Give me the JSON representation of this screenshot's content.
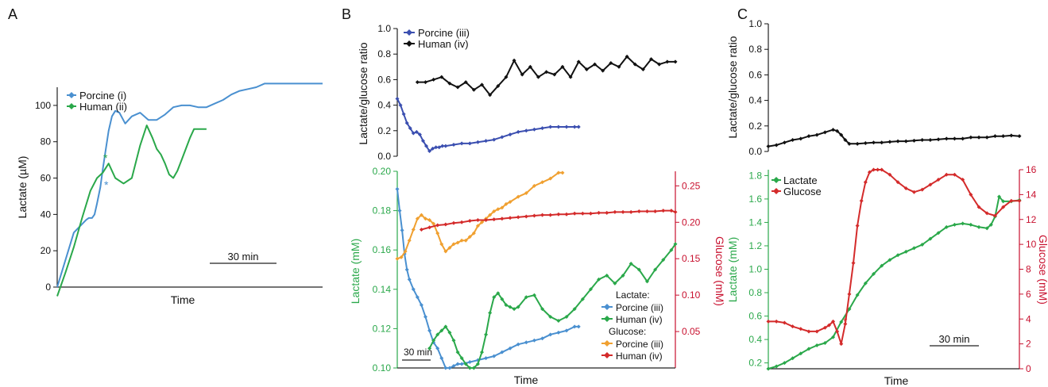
{
  "panels": [
    {
      "id": "A",
      "letter": "A"
    },
    {
      "id": "B",
      "letter": "B"
    },
    {
      "id": "C",
      "letter": "C"
    }
  ],
  "colors": {
    "porcine_lactate": "#4a90d0",
    "human_lactate": "#2aa84a",
    "porcine_ratio": "#3b4fb0",
    "human_ratio": "#111111",
    "porcine_glucose": "#f0a030",
    "human_glucose": "#d42b2b",
    "glucose_axis": "#c8102e",
    "lactate_axis": "#2aa84a"
  },
  "chart_data": [
    {
      "panel": "A",
      "type": "line",
      "xlabel": "Time",
      "ylabel": "Lactate (µM)",
      "ylim": [
        0,
        110
      ],
      "yticks": [
        "0",
        "20",
        "40",
        "60",
        "80",
        "100"
      ],
      "scalebar": "30 min",
      "legend": [
        "Porcine (i)",
        "Human (ii)"
      ],
      "series": [
        {
          "name": "Porcine (i)",
          "color": "#4a90d0",
          "x": [
            0,
            20,
            35,
            38,
            42,
            45,
            48,
            52,
            55,
            58,
            62,
            66,
            70,
            75,
            82,
            90,
            100,
            110,
            120,
            130,
            140,
            150,
            160,
            170,
            180,
            190,
            200,
            210,
            220,
            230,
            240,
            250,
            260,
            270,
            280,
            290,
            300,
            310,
            320
          ],
          "y": [
            0,
            30,
            37,
            38,
            38,
            40,
            46,
            55,
            65,
            74,
            86,
            94,
            97,
            96,
            90,
            94,
            96,
            92,
            92,
            95,
            99,
            100,
            100,
            99,
            99,
            101,
            103,
            106,
            108,
            109,
            110,
            112,
            112,
            112,
            112,
            112,
            112,
            112,
            112
          ]
        },
        {
          "name": "Human (ii)",
          "color": "#2aa84a",
          "x": [
            0,
            10,
            20,
            30,
            40,
            48,
            55,
            62,
            70,
            80,
            90,
            100,
            108,
            115,
            120,
            125,
            130,
            135,
            140,
            145,
            150,
            155,
            160,
            165,
            170,
            175,
            180
          ],
          "y": [
            -5,
            8,
            22,
            38,
            53,
            60,
            63,
            68,
            60,
            57,
            60,
            78,
            89,
            82,
            76,
            73,
            68,
            62,
            60,
            64,
            70,
            76,
            82,
            87,
            87,
            87,
            87
          ]
        }
      ]
    },
    {
      "panel": "B-top",
      "type": "line",
      "ylabel": "Lactate/glucose ratio",
      "ylim": [
        0,
        1.0
      ],
      "yticks": [
        "0.0",
        "0.2",
        "0.4",
        "0.6",
        "0.8",
        "1.0"
      ],
      "legend": [
        "Porcine (iii)",
        "Human (iv)"
      ],
      "series": [
        {
          "name": "Porcine (iii)",
          "color": "#3b4fb0",
          "x": [
            0,
            4,
            8,
            12,
            16,
            20,
            24,
            28,
            32,
            36,
            40,
            44,
            48,
            52,
            56,
            60,
            70,
            80,
            90,
            100,
            110,
            120,
            130,
            140,
            150,
            160,
            170,
            180,
            190,
            200,
            210,
            220,
            225
          ],
          "y": [
            0.45,
            0.4,
            0.33,
            0.26,
            0.22,
            0.18,
            0.19,
            0.17,
            0.12,
            0.08,
            0.04,
            0.06,
            0.07,
            0.07,
            0.08,
            0.08,
            0.09,
            0.1,
            0.1,
            0.11,
            0.12,
            0.13,
            0.15,
            0.17,
            0.19,
            0.2,
            0.21,
            0.22,
            0.23,
            0.23,
            0.23,
            0.23,
            0.23
          ]
        },
        {
          "name": "Human (iv)",
          "color": "#111111",
          "x": [
            25,
            35,
            45,
            55,
            65,
            75,
            85,
            95,
            105,
            115,
            125,
            135,
            145,
            155,
            165,
            175,
            185,
            195,
            205,
            215,
            225,
            235,
            245,
            255,
            265,
            275,
            285,
            295,
            305,
            315,
            325,
            335,
            345
          ],
          "y": [
            0.58,
            0.58,
            0.6,
            0.62,
            0.57,
            0.54,
            0.58,
            0.52,
            0.56,
            0.48,
            0.55,
            0.62,
            0.75,
            0.64,
            0.7,
            0.62,
            0.66,
            0.64,
            0.7,
            0.62,
            0.74,
            0.68,
            0.72,
            0.67,
            0.73,
            0.7,
            0.78,
            0.72,
            0.68,
            0.76,
            0.72,
            0.74,
            0.74
          ]
        }
      ]
    },
    {
      "panel": "B-bottom",
      "type": "line",
      "xlabel": "Time",
      "ylabel_left": "Lactate (mM)",
      "ylabel_right": "Glucose (mM)",
      "ylim_left": [
        0.1,
        0.2
      ],
      "ylim_right": [
        0,
        0.27
      ],
      "yticks_left": [
        "0.10",
        "0.12",
        "0.14",
        "0.16",
        "0.18",
        "0.20"
      ],
      "yticks_right": [
        "0.05",
        "0.10",
        "0.15",
        "0.20",
        "0.25"
      ],
      "scalebar": "30 min",
      "legend_groups": [
        {
          "title": "Lactate:",
          "items": [
            "Porcine (iii)",
            "Human (iv)"
          ]
        },
        {
          "title": "Glucose:",
          "items": [
            "Porcine (iii)",
            "Human (iv)"
          ]
        }
      ],
      "series": [
        {
          "name": "Porcine (iii)",
          "group": "Lactate:",
          "axis": "left",
          "color": "#4a90d0",
          "x": [
            0,
            3,
            6,
            9,
            12,
            15,
            20,
            25,
            30,
            35,
            40,
            45,
            50,
            55,
            60,
            65,
            70,
            75,
            80,
            90,
            100,
            110,
            120,
            130,
            140,
            150,
            160,
            170,
            180,
            190,
            200,
            210,
            220,
            225
          ],
          "y": [
            0.191,
            0.18,
            0.17,
            0.158,
            0.15,
            0.145,
            0.14,
            0.136,
            0.132,
            0.126,
            0.119,
            0.113,
            0.11,
            0.105,
            0.1,
            0.1,
            0.101,
            0.102,
            0.102,
            0.103,
            0.104,
            0.105,
            0.106,
            0.108,
            0.11,
            0.112,
            0.113,
            0.114,
            0.115,
            0.117,
            0.118,
            0.119,
            0.121,
            0.121
          ]
        },
        {
          "name": "Human (iv)",
          "group": "Lactate:",
          "axis": "left",
          "color": "#2aa84a",
          "x": [
            40,
            45,
            50,
            55,
            60,
            65,
            70,
            75,
            80,
            85,
            90,
            95,
            100,
            105,
            110,
            115,
            120,
            125,
            130,
            135,
            140,
            145,
            150,
            160,
            170,
            180,
            190,
            200,
            210,
            220,
            230,
            240,
            250,
            260,
            270,
            280,
            290,
            300,
            310,
            320,
            330,
            340,
            345
          ],
          "y": [
            0.11,
            0.114,
            0.117,
            0.119,
            0.121,
            0.118,
            0.114,
            0.108,
            0.105,
            0.102,
            0.1,
            0.1,
            0.102,
            0.108,
            0.117,
            0.128,
            0.136,
            0.138,
            0.135,
            0.132,
            0.131,
            0.13,
            0.131,
            0.136,
            0.137,
            0.13,
            0.126,
            0.124,
            0.126,
            0.13,
            0.135,
            0.14,
            0.145,
            0.147,
            0.143,
            0.147,
            0.153,
            0.15,
            0.144,
            0.15,
            0.155,
            0.16,
            0.163
          ]
        },
        {
          "name": "Porcine (iii)",
          "group": "Glucose:",
          "axis": "right",
          "color": "#f0a030",
          "x": [
            0,
            5,
            10,
            15,
            20,
            25,
            30,
            35,
            40,
            45,
            50,
            55,
            60,
            65,
            70,
            75,
            80,
            85,
            90,
            95,
            100,
            105,
            110,
            115,
            120,
            125,
            130,
            135,
            140,
            150,
            160,
            170,
            180,
            190,
            200,
            205
          ],
          "y": [
            0.15,
            0.152,
            0.16,
            0.175,
            0.19,
            0.205,
            0.21,
            0.205,
            0.203,
            0.198,
            0.185,
            0.17,
            0.16,
            0.165,
            0.17,
            0.172,
            0.175,
            0.175,
            0.18,
            0.185,
            0.195,
            0.2,
            0.205,
            0.21,
            0.215,
            0.218,
            0.22,
            0.225,
            0.228,
            0.235,
            0.24,
            0.25,
            0.255,
            0.26,
            0.268,
            0.268
          ]
        },
        {
          "name": "Human (iv)",
          "group": "Glucose:",
          "axis": "right",
          "color": "#d42b2b",
          "x": [
            30,
            40,
            50,
            60,
            70,
            80,
            90,
            100,
            110,
            120,
            130,
            140,
            150,
            160,
            170,
            180,
            190,
            200,
            210,
            220,
            230,
            240,
            250,
            260,
            270,
            280,
            290,
            300,
            310,
            320,
            330,
            340,
            345
          ],
          "y": [
            0.19,
            0.193,
            0.196,
            0.197,
            0.199,
            0.2,
            0.202,
            0.203,
            0.203,
            0.204,
            0.205,
            0.206,
            0.207,
            0.208,
            0.209,
            0.21,
            0.21,
            0.211,
            0.211,
            0.212,
            0.212,
            0.212,
            0.213,
            0.213,
            0.214,
            0.214,
            0.214,
            0.215,
            0.215,
            0.215,
            0.216,
            0.216,
            0.214
          ]
        }
      ]
    },
    {
      "panel": "C-top",
      "type": "line",
      "ylabel": "Lactate/glucose ratio",
      "ylim": [
        0,
        1.0
      ],
      "yticks": [
        "0.0",
        "0.2",
        "0.4",
        "0.6",
        "0.8",
        "1.0"
      ],
      "series": [
        {
          "color": "#111111",
          "x": [
            0,
            10,
            20,
            30,
            40,
            50,
            60,
            70,
            80,
            85,
            90,
            95,
            100,
            110,
            120,
            130,
            140,
            150,
            160,
            170,
            180,
            190,
            200,
            210,
            220,
            230,
            240,
            250,
            260,
            270,
            280,
            290,
            300,
            310
          ],
          "y": [
            0.04,
            0.05,
            0.07,
            0.09,
            0.1,
            0.12,
            0.13,
            0.15,
            0.17,
            0.16,
            0.13,
            0.09,
            0.06,
            0.06,
            0.065,
            0.07,
            0.07,
            0.075,
            0.08,
            0.08,
            0.085,
            0.09,
            0.09,
            0.095,
            0.1,
            0.1,
            0.1,
            0.11,
            0.11,
            0.11,
            0.12,
            0.12,
            0.125,
            0.12
          ]
        }
      ]
    },
    {
      "panel": "C-bottom",
      "type": "line",
      "xlabel": "Time",
      "ylabel_left": "Lactate (mM)",
      "ylabel_right": "Glucose (mM)",
      "ylim_left": [
        0.15,
        1.85
      ],
      "ylim_right": [
        0,
        16
      ],
      "yticks_left": [
        "0.2",
        "0.4",
        "0.6",
        "0.8",
        "1.0",
        "1.2",
        "1.4",
        "1.6",
        "1.8"
      ],
      "yticks_right": [
        "0",
        "2",
        "4",
        "6",
        "8",
        "10",
        "12",
        "14",
        "16"
      ],
      "scalebar": "30 min",
      "legend": [
        "Lactate",
        "Glucose"
      ],
      "series": [
        {
          "name": "Lactate",
          "axis": "left",
          "color": "#2aa84a",
          "x": [
            0,
            10,
            20,
            30,
            40,
            50,
            60,
            70,
            80,
            90,
            100,
            110,
            120,
            130,
            140,
            150,
            160,
            170,
            180,
            190,
            200,
            210,
            220,
            230,
            240,
            250,
            260,
            270,
            275,
            280,
            285,
            290,
            300,
            310
          ],
          "y": [
            0.15,
            0.17,
            0.2,
            0.24,
            0.28,
            0.32,
            0.35,
            0.37,
            0.42,
            0.55,
            0.66,
            0.78,
            0.88,
            0.96,
            1.03,
            1.08,
            1.12,
            1.15,
            1.18,
            1.21,
            1.26,
            1.31,
            1.36,
            1.38,
            1.39,
            1.38,
            1.36,
            1.35,
            1.38,
            1.45,
            1.62,
            1.58,
            1.58,
            1.59
          ]
        },
        {
          "name": "Glucose",
          "axis": "right",
          "color": "#d42b2b",
          "x": [
            0,
            10,
            20,
            30,
            40,
            50,
            60,
            70,
            75,
            80,
            85,
            90,
            95,
            100,
            105,
            110,
            115,
            120,
            125,
            130,
            135,
            140,
            150,
            160,
            170,
            180,
            190,
            200,
            210,
            220,
            230,
            240,
            250,
            260,
            270,
            280,
            290,
            300,
            310
          ],
          "y": [
            3.8,
            3.8,
            3.7,
            3.4,
            3.2,
            3.0,
            3.0,
            3.3,
            3.5,
            3.8,
            3.0,
            2.0,
            3.6,
            6.0,
            8.5,
            11.5,
            13.5,
            15.0,
            15.8,
            16.0,
            16.0,
            16.0,
            15.6,
            15.0,
            14.5,
            14.2,
            14.4,
            14.8,
            15.2,
            15.6,
            15.6,
            15.2,
            14.0,
            13.0,
            12.5,
            12.3,
            13.0,
            13.5,
            13.5
          ]
        }
      ]
    }
  ],
  "annotations": {
    "A_star_human": "*",
    "A_star_porcine": "*",
    "C_star": "*"
  }
}
